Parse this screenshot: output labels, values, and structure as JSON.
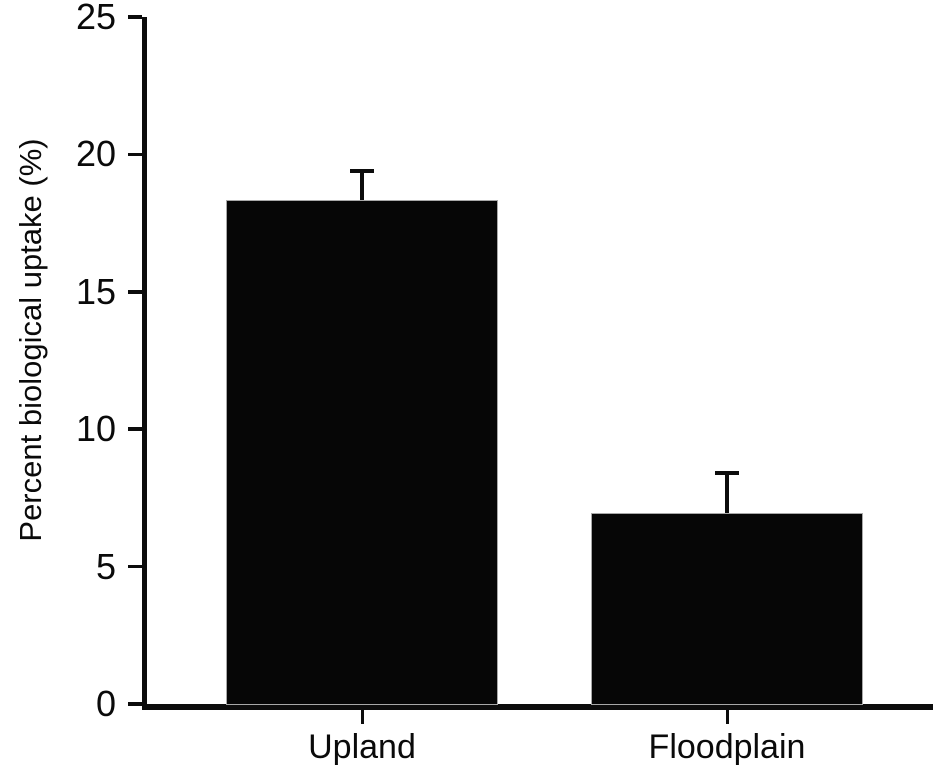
{
  "chart_data": {
    "type": "bar",
    "categories": [
      "Upland",
      "Floodplain"
    ],
    "values": [
      18.3,
      6.9
    ],
    "errors_plus": [
      1.1,
      1.5
    ],
    "ylabel": "Percent biological uptake (%)",
    "ylim": [
      0,
      25
    ],
    "yticks": [
      0,
      5,
      10,
      15,
      20,
      25
    ],
    "ytick_labels": [
      "0",
      "5",
      "10",
      "15",
      "20",
      "25"
    ],
    "bar_color": "#060606",
    "axis_color": "#0c0c0c",
    "background_color": "#ffffff",
    "grid": false,
    "legend": false,
    "error_bar_style": "upper-cap-only"
  }
}
